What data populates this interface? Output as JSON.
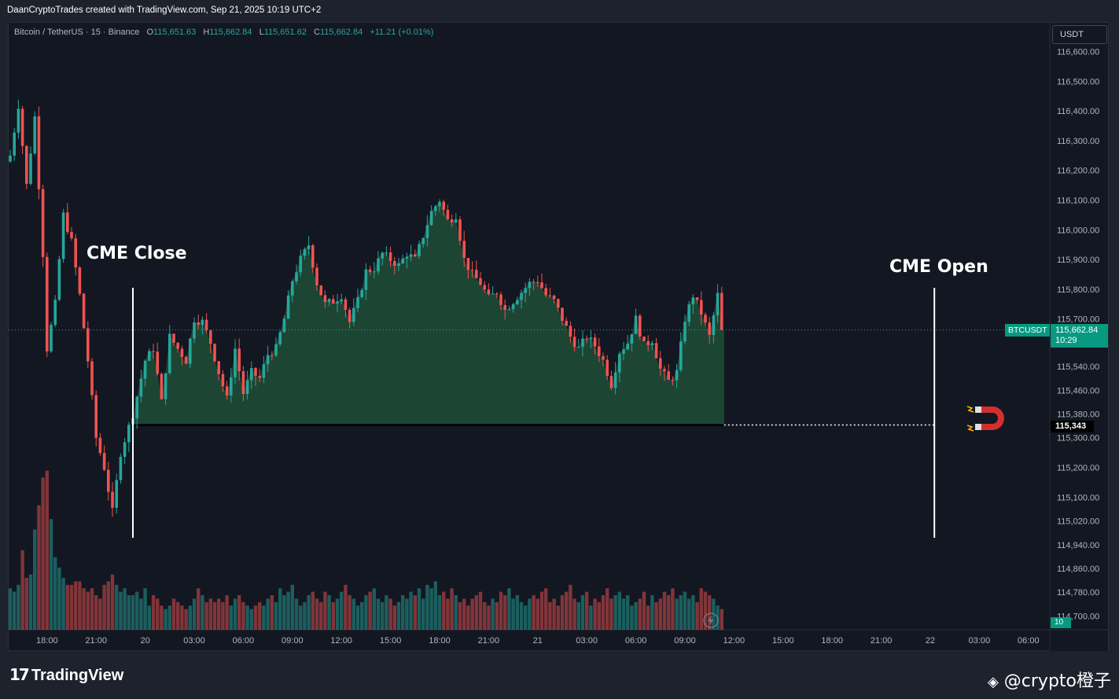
{
  "created_line": "DaanCryptoTrades created with TradingView.com, Sep 21, 2025 10:19 UTC+2",
  "legend": {
    "symbol": "Bitcoin / TetherUS · 15 · Binance",
    "o_label": "O",
    "o_value": "115,651.63",
    "h_label": "H",
    "h_value": "115,662.84",
    "l_label": "L",
    "l_value": "115,651.62",
    "c_label": "C",
    "c_value": "115,662.84",
    "change": "+11.21 (+0.01%)"
  },
  "currency_button": "USDT",
  "annotations": {
    "close": "CME Close",
    "open": "CME Open"
  },
  "tags": {
    "symbol": "BTCUSDT",
    "last_price": "115,662.84",
    "countdown": "10:29",
    "level": "115,343",
    "volume": "10"
  },
  "footer": {
    "logo": "TradingView",
    "watermark": "@crypto橙子"
  },
  "icons": {
    "magnet": "magnet-icon",
    "lightning": "lightning-icon",
    "logo": "tradingview-logo-icon",
    "watermark": "binance-diamond-icon"
  },
  "colors": {
    "up": "#26a69a",
    "down": "#ef5350",
    "fill": "#1f4a36",
    "background": "#131722"
  },
  "chart_data": {
    "type": "candlestick",
    "symbol": "BTCUSDT",
    "timeframe": "15",
    "y_ticks": [
      116600,
      116500,
      116400,
      116300,
      116200,
      116100,
      116000,
      115900,
      115800,
      115700,
      115540,
      115460,
      115380,
      115300,
      115200,
      115100,
      115020,
      114940,
      114860,
      114780,
      114700
    ],
    "y_tick_labels": [
      "116,600.00",
      "116,500.00",
      "116,400.00",
      "116,300.00",
      "116,200.00",
      "116,100.00",
      "116,000.00",
      "115,900.00",
      "115,800.00",
      "115,700.00",
      "115,540.00",
      "115,460.00",
      "115,380.00",
      "115,300.00",
      "115,200.00",
      "115,100.00",
      "115,020.00",
      "114,940.00",
      "114,860.00",
      "114,780.00",
      "114,700.00"
    ],
    "x_tick_labels": [
      "18:00",
      "21:00",
      "20",
      "03:00",
      "06:00",
      "09:00",
      "12:00",
      "15:00",
      "18:00",
      "21:00",
      "21",
      "03:00",
      "06:00",
      "09:00",
      "12:00",
      "15:00",
      "18:00",
      "21:00",
      "22",
      "03:00",
      "06:00"
    ],
    "x_tick_bar_index": [
      9,
      21,
      33,
      45,
      57,
      69,
      81,
      93,
      105,
      117,
      129,
      141,
      153,
      165,
      177,
      189,
      201,
      213,
      225,
      237,
      249
    ],
    "cme_close_bar_index": 30,
    "cme_open_bar_index": 226,
    "cme_gap_level": 115343,
    "last_price": 115662.84,
    "path": [
      [
        0,
        116250
      ],
      [
        2,
        116420
      ],
      [
        4,
        116150
      ],
      [
        6,
        116380
      ],
      [
        8,
        115920
      ],
      [
        9,
        115600
      ],
      [
        11,
        115750
      ],
      [
        13,
        116050
      ],
      [
        15,
        115960
      ],
      [
        17,
        115780
      ],
      [
        19,
        115560
      ],
      [
        21,
        115300
      ],
      [
        23,
        115200
      ],
      [
        25,
        115050
      ],
      [
        27,
        115250
      ],
      [
        30,
        115380
      ],
      [
        33,
        115560
      ],
      [
        35,
        115600
      ],
      [
        37,
        115420
      ],
      [
        39,
        115640
      ],
      [
        41,
        115600
      ],
      [
        43,
        115560
      ],
      [
        45,
        115700
      ],
      [
        47,
        115690
      ],
      [
        49,
        115620
      ],
      [
        51,
        115520
      ],
      [
        53,
        115430
      ],
      [
        55,
        115600
      ],
      [
        57,
        115450
      ],
      [
        59,
        115520
      ],
      [
        61,
        115500
      ],
      [
        63,
        115580
      ],
      [
        65,
        115600
      ],
      [
        67,
        115700
      ],
      [
        69,
        115830
      ],
      [
        71,
        115900
      ],
      [
        73,
        115950
      ],
      [
        75,
        115820
      ],
      [
        77,
        115750
      ],
      [
        79,
        115760
      ],
      [
        81,
        115780
      ],
      [
        83,
        115690
      ],
      [
        85,
        115760
      ],
      [
        87,
        115860
      ],
      [
        89,
        115870
      ],
      [
        91,
        115920
      ],
      [
        93,
        115900
      ],
      [
        95,
        115880
      ],
      [
        97,
        115920
      ],
      [
        99,
        115900
      ],
      [
        101,
        115980
      ],
      [
        103,
        116060
      ],
      [
        105,
        116100
      ],
      [
        107,
        116030
      ],
      [
        109,
        116050
      ],
      [
        111,
        115900
      ],
      [
        113,
        115850
      ],
      [
        115,
        115820
      ],
      [
        117,
        115770
      ],
      [
        119,
        115790
      ],
      [
        121,
        115730
      ],
      [
        123,
        115760
      ],
      [
        125,
        115790
      ],
      [
        127,
        115820
      ],
      [
        129,
        115830
      ],
      [
        131,
        115780
      ],
      [
        133,
        115760
      ],
      [
        135,
        115700
      ],
      [
        137,
        115640
      ],
      [
        139,
        115600
      ],
      [
        141,
        115640
      ],
      [
        143,
        115610
      ],
      [
        145,
        115560
      ],
      [
        147,
        115480
      ],
      [
        149,
        115590
      ],
      [
        151,
        115620
      ],
      [
        153,
        115700
      ],
      [
        155,
        115610
      ],
      [
        157,
        115630
      ],
      [
        159,
        115530
      ],
      [
        161,
        115490
      ],
      [
        163,
        115520
      ],
      [
        165,
        115700
      ],
      [
        167,
        115780
      ],
      [
        169,
        115720
      ],
      [
        171,
        115640
      ],
      [
        173,
        115780
      ],
      [
        174,
        115663
      ]
    ],
    "volume": [
      24,
      22,
      26,
      46,
      30,
      32,
      58,
      72,
      88,
      92,
      64,
      42,
      36,
      30,
      26,
      26,
      28,
      28,
      24,
      22,
      24,
      20,
      18,
      26,
      28,
      32,
      26,
      22,
      24,
      20,
      20,
      22,
      18,
      24,
      14,
      20,
      18,
      14,
      12,
      14,
      18,
      16,
      14,
      12,
      14,
      18,
      24,
      20,
      16,
      18,
      16,
      18,
      16,
      20,
      14,
      18,
      20,
      16,
      14,
      12,
      14,
      16,
      14,
      18,
      20,
      16,
      24,
      20,
      22,
      26,
      18,
      14,
      16,
      20,
      22,
      18,
      16,
      22,
      20,
      16,
      18,
      22,
      26,
      20,
      18,
      14,
      16,
      20,
      22,
      24,
      18,
      16,
      20,
      18,
      14,
      16,
      20,
      18,
      22,
      20,
      24,
      18,
      26,
      24,
      28,
      20,
      22,
      18,
      24,
      20,
      16,
      18,
      14,
      18,
      20,
      22,
      16,
      14,
      18,
      16,
      22,
      20,
      24,
      18,
      20,
      16,
      14,
      18,
      20,
      18,
      22,
      24,
      16,
      18,
      14,
      20,
      22,
      26,
      18,
      16,
      20,
      22,
      14,
      18,
      16,
      20,
      24,
      18,
      20,
      22,
      18,
      20,
      14,
      16,
      18,
      22,
      14,
      20,
      16,
      18,
      22,
      20,
      24,
      18,
      20,
      22,
      18,
      20,
      16,
      24,
      22,
      20,
      18,
      14,
      12
    ]
  }
}
